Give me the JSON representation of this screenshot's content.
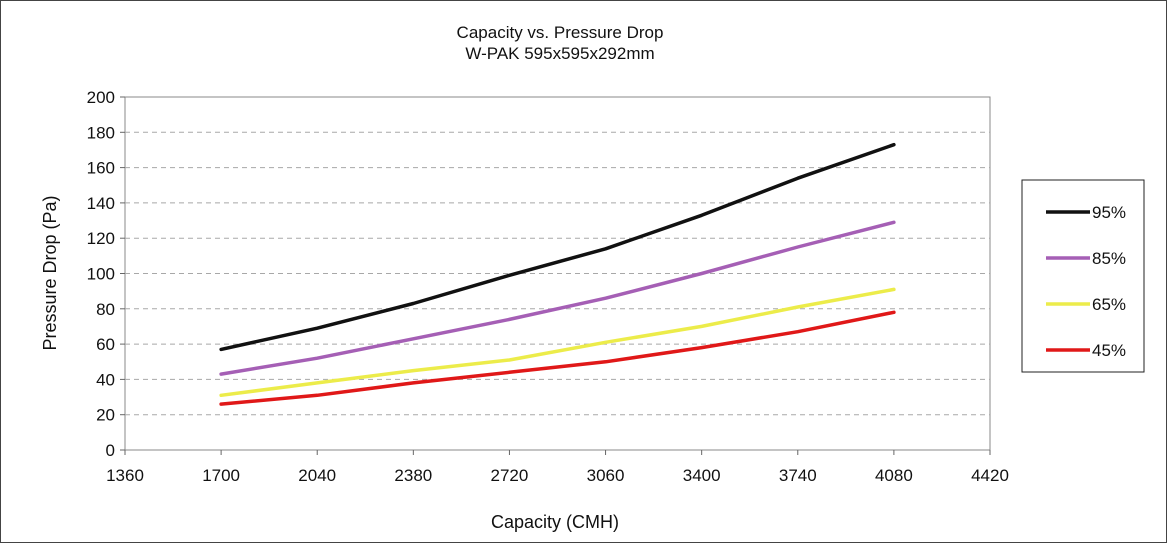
{
  "chart_data": {
    "type": "line",
    "title": "Capacity vs. Pressure Drop",
    "subtitle": "W-PAK 595x595x292mm",
    "xlabel": "Capacity (CMH)",
    "ylabel": "Pressure Drop (Pa)",
    "xlim": [
      1360,
      4420
    ],
    "ylim": [
      0,
      200
    ],
    "x_ticks": [
      1360,
      1700,
      2040,
      2380,
      2720,
      3060,
      3400,
      3740,
      4080,
      4420
    ],
    "y_ticks": [
      0,
      20,
      40,
      60,
      80,
      100,
      120,
      140,
      160,
      180,
      200
    ],
    "grid": true,
    "legend_position": "right",
    "x": [
      1700,
      2040,
      2380,
      2720,
      3060,
      3400,
      3740,
      4080
    ],
    "series": [
      {
        "name": "95%",
        "color": "#111111",
        "values": [
          57,
          69,
          83,
          99,
          114,
          133,
          154,
          173
        ]
      },
      {
        "name": "85%",
        "color": "#a55fb5",
        "values": [
          43,
          52,
          63,
          74,
          86,
          100,
          115,
          129
        ]
      },
      {
        "name": "65%",
        "color": "#ecec4a",
        "values": [
          31,
          38,
          45,
          51,
          61,
          70,
          81,
          91
        ]
      },
      {
        "name": "45%",
        "color": "#e01818",
        "values": [
          26,
          31,
          38,
          44,
          50,
          58,
          67,
          78
        ]
      }
    ]
  }
}
